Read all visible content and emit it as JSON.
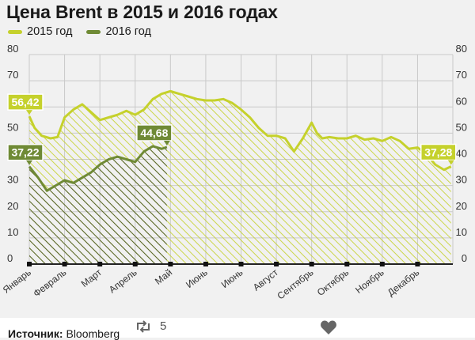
{
  "chart_data": {
    "type": "area",
    "title": "Цена Brent в 2015 и 2016 годах",
    "xlabel": "",
    "ylabel": "",
    "ylim": [
      0,
      80
    ],
    "y_ticks": [
      0,
      10,
      20,
      30,
      40,
      50,
      60,
      70,
      80
    ],
    "grid": true,
    "legend": "top-left",
    "months": [
      "Январь",
      "Февраль",
      "Март",
      "Апрель",
      "Май",
      "Июнь",
      "Июнь",
      "Август",
      "Сентябрь",
      "Октябрь",
      "Ноябрь",
      "Декабрь"
    ],
    "series": [
      {
        "name": "2015 год",
        "color": "#c5d12c",
        "x": [
          0.0,
          0.15,
          0.35,
          0.6,
          0.8,
          1.0,
          1.25,
          1.5,
          1.75,
          2.0,
          2.25,
          2.5,
          2.75,
          3.0,
          3.25,
          3.5,
          3.75,
          4.0,
          4.25,
          4.5,
          4.75,
          5.0,
          5.25,
          5.5,
          5.75,
          6.0,
          6.25,
          6.5,
          6.75,
          7.0,
          7.25,
          7.5,
          7.75,
          8.0,
          8.15,
          8.3,
          8.5,
          8.75,
          9.0,
          9.25,
          9.5,
          9.75,
          10.0,
          10.25,
          10.5,
          10.75,
          11.0,
          11.25,
          11.5,
          11.75,
          11.95
        ],
        "values": [
          56.42,
          52,
          49,
          48,
          48.5,
          56,
          59,
          61,
          58,
          55,
          56,
          57,
          58.5,
          57,
          59,
          63,
          65,
          66,
          65,
          64,
          63,
          62.5,
          62.5,
          63,
          61.5,
          59,
          56,
          52,
          49,
          49,
          48,
          43,
          48,
          54,
          50,
          48,
          48.5,
          48,
          48,
          49,
          47.5,
          48,
          47,
          48.5,
          47,
          44,
          44.5,
          42,
          38,
          36,
          37.28
        ]
      },
      {
        "name": "2016 год",
        "color": "#6f8a35",
        "x": [
          0.0,
          0.25,
          0.5,
          0.75,
          1.0,
          1.25,
          1.5,
          1.75,
          2.0,
          2.25,
          2.5,
          2.75,
          3.0,
          3.25,
          3.5,
          3.75,
          3.9
        ],
        "values": [
          37.22,
          33,
          28,
          30,
          32,
          31,
          33,
          35,
          38,
          40,
          41,
          40,
          39,
          43,
          45,
          44,
          44.68
        ]
      }
    ],
    "annotations": [
      {
        "series": 0,
        "text": "56,42",
        "anchor": "start"
      },
      {
        "series": 1,
        "text": "37,22",
        "anchor": "start"
      },
      {
        "series": 1,
        "text": "44,68",
        "anchor": "end"
      },
      {
        "series": 0,
        "text": "37,28",
        "anchor": "end"
      }
    ]
  },
  "footer": {
    "source_label": "Источник:",
    "source_name": "Bloomberg",
    "retweet_count": "5",
    "retweet_icon": "retweet-icon",
    "like_icon": "heart-icon"
  }
}
